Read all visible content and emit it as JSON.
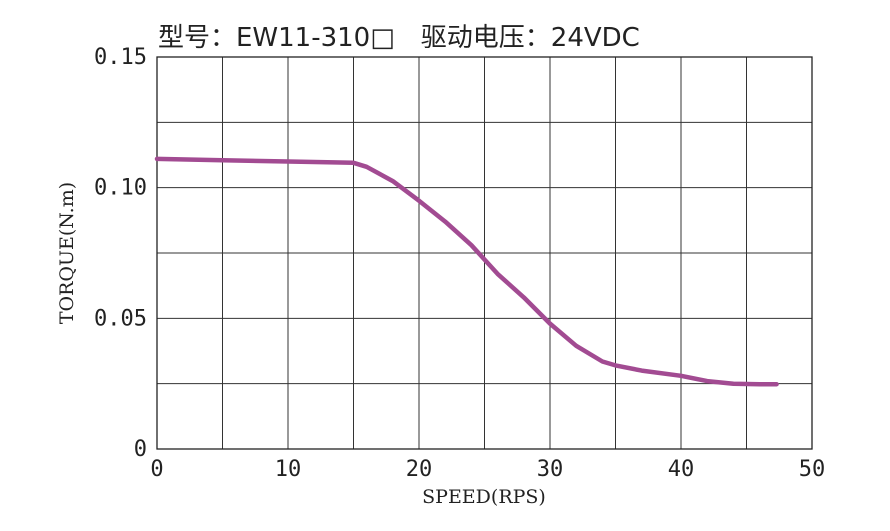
{
  "chart_data": {
    "type": "line",
    "title": "型号：EW11-310□　驱动电压：24VDC",
    "xlabel": "SPEED(RPS)",
    "ylabel": "TORQUE(N.m)",
    "xlim": [
      0,
      50
    ],
    "ylim": [
      0,
      0.15
    ],
    "x_ticks": [
      "0",
      "10",
      "20",
      "30",
      "40",
      "50"
    ],
    "y_ticks": [
      "0",
      "0.05",
      "0.10",
      "0.15"
    ],
    "grid": true,
    "series": [
      {
        "color": "#a24b92",
        "x": [
          0,
          5,
          10,
          15,
          16,
          18,
          20,
          22,
          24,
          26,
          28,
          30,
          32,
          34,
          35,
          37,
          40,
          42,
          44,
          46,
          47.3
        ],
        "y": [
          0.111,
          0.1105,
          0.11,
          0.1095,
          0.108,
          0.1025,
          0.095,
          0.087,
          0.078,
          0.067,
          0.058,
          0.048,
          0.0395,
          0.0335,
          0.032,
          0.03,
          0.028,
          0.026,
          0.025,
          0.0248,
          0.0248
        ]
      }
    ]
  }
}
